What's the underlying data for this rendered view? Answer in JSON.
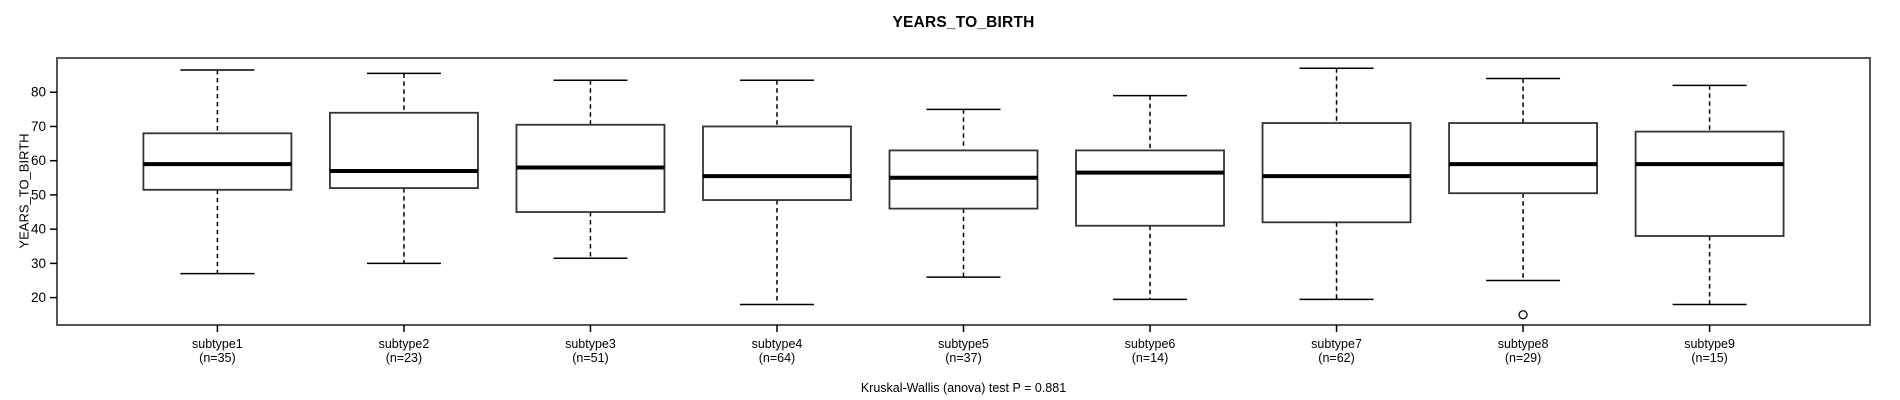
{
  "figure": {
    "title": "YEARS_TO_BIRTH",
    "y_axis_label": "YEARS_TO_BIRTH",
    "caption": "Kruskal-Wallis (anova) test P = 0.881"
  },
  "chart_data": {
    "type": "boxplot",
    "title": "YEARS_TO_BIRTH",
    "xlabel": "",
    "ylabel": "YEARS_TO_BIRTH",
    "ylim": [
      12,
      90
    ],
    "yticks": [
      20,
      30,
      40,
      50,
      60,
      70,
      80
    ],
    "grid": false,
    "caption": "Kruskal-Wallis (anova) test P = 0.881",
    "categories": [
      "subtype1",
      "subtype2",
      "subtype3",
      "subtype4",
      "subtype5",
      "subtype6",
      "subtype7",
      "subtype8",
      "subtype9"
    ],
    "series": [
      {
        "label": "subtype1",
        "n": 35,
        "whisker_low": 27,
        "q1": 51.5,
        "median": 59,
        "q3": 68,
        "whisker_high": 86.5,
        "outliers": []
      },
      {
        "label": "subtype2",
        "n": 23,
        "whisker_low": 30,
        "q1": 52,
        "median": 57,
        "q3": 74,
        "whisker_high": 85.5,
        "outliers": []
      },
      {
        "label": "subtype3",
        "n": 51,
        "whisker_low": 31.5,
        "q1": 45,
        "median": 58,
        "q3": 70.5,
        "whisker_high": 83.5,
        "outliers": []
      },
      {
        "label": "subtype4",
        "n": 64,
        "whisker_low": 18,
        "q1": 48.5,
        "median": 55.5,
        "q3": 70,
        "whisker_high": 83.5,
        "outliers": []
      },
      {
        "label": "subtype5",
        "n": 37,
        "whisker_low": 26,
        "q1": 46,
        "median": 55,
        "q3": 63,
        "whisker_high": 75,
        "outliers": []
      },
      {
        "label": "subtype6",
        "n": 14,
        "whisker_low": 19.5,
        "q1": 41,
        "median": 56.5,
        "q3": 63,
        "whisker_high": 79,
        "outliers": []
      },
      {
        "label": "subtype7",
        "n": 62,
        "whisker_low": 19.5,
        "q1": 42,
        "median": 55.5,
        "q3": 71,
        "whisker_high": 87,
        "outliers": []
      },
      {
        "label": "subtype8",
        "n": 29,
        "whisker_low": 25,
        "q1": 50.5,
        "median": 59,
        "q3": 71,
        "whisker_high": 84,
        "outliers": [
          15
        ]
      },
      {
        "label": "subtype9",
        "n": 15,
        "whisker_low": 18,
        "q1": 38,
        "median": 59,
        "q3": 68.5,
        "whisker_high": 82,
        "outliers": []
      }
    ],
    "colors": {
      "box_fill": "#ffffff",
      "line": "#000000",
      "frame": "#555555"
    }
  }
}
